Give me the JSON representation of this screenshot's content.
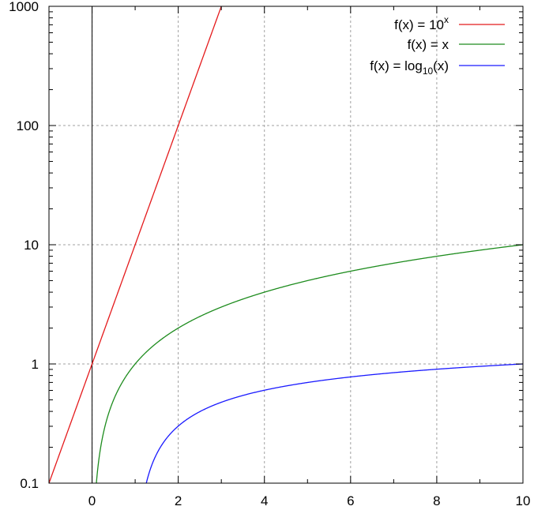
{
  "chart_data": {
    "type": "line",
    "title": "",
    "xlabel": "",
    "ylabel": "",
    "xlim": [
      -1,
      10
    ],
    "ylim": [
      0.1,
      1000
    ],
    "yscale": "log",
    "grid": true,
    "legend_position": "top-right",
    "x_ticks": [
      "0",
      "2",
      "4",
      "6",
      "8",
      "10"
    ],
    "y_ticks": [
      "0.1",
      "1",
      "10",
      "100",
      "1000"
    ],
    "series": [
      {
        "name": "f(x) = 10^x",
        "legend_label": "f(x) = 10",
        "legend_superscript": "x",
        "legend_subscript": "",
        "legend_suffix": "",
        "function": "pow10",
        "color": "#e41a1c",
        "x": [
          -1,
          0,
          1,
          2,
          3
        ],
        "y": [
          0.1,
          1,
          10,
          100,
          1000
        ]
      },
      {
        "name": "f(x) = x",
        "legend_label": "f(x) = x",
        "legend_superscript": "",
        "legend_subscript": "",
        "legend_suffix": "",
        "function": "identity",
        "color": "#1e8c1e",
        "x": [
          0.1,
          0.5,
          1,
          2,
          4,
          6,
          8,
          10
        ],
        "y": [
          0.1,
          0.5,
          1,
          2,
          4,
          6,
          8,
          10
        ]
      },
      {
        "name": "f(x) = log10(x)",
        "legend_label": "f(x) = log",
        "legend_superscript": "",
        "legend_subscript": "10",
        "legend_suffix": "(x)",
        "function": "log10",
        "color": "#1a1aff",
        "x": [
          1.2589,
          2,
          4,
          6,
          8,
          10
        ],
        "y": [
          0.1,
          0.301,
          0.602,
          0.778,
          0.903,
          1
        ]
      }
    ]
  }
}
